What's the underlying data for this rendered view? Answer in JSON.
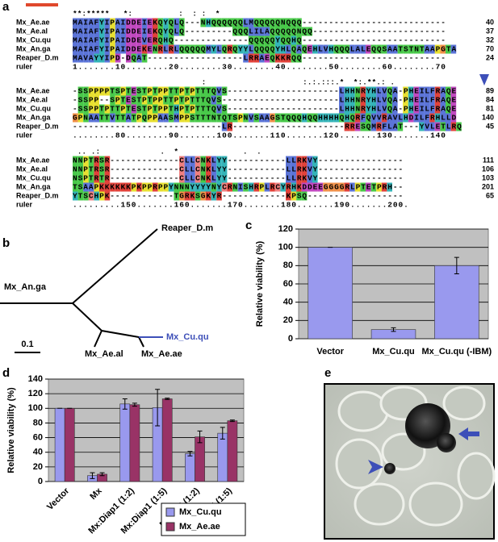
{
  "panel_labels": [
    "a",
    "b",
    "c",
    "d",
    "e"
  ],
  "alignment": {
    "blocks": [
      {
        "conservation": "**:*****   *:          :  : :  *",
        "rows": [
          {
            "name": "Mx_Ae.ae",
            "sequence": "MAIAFYIPAIDDEIEKQYQLQ---NHQQQQQQLMQQQQQNQQQ---------------------------",
            "end": 40
          },
          {
            "name": "Mx_Ae.al",
            "sequence": "MAIAFYIPAIDDEIEKQYQLQ---------QQQLILAQQQQQNQQ-------------------------",
            "end": 37
          },
          {
            "name": "Mx_Cu.qu",
            "sequence": "MAIAFYIPAIDDEVERQHQ--------------QQQQQYQQHQ---------------------------",
            "end": 32
          },
          {
            "name": "Mx_An.ga",
            "sequence": "MAIAFYIPAIDDEKENRLRLQQQQQMYLQRQYYLQQQQYHLQAQEHLVHQQQLALEQQSAATSTNTAAPGTA",
            "end": 70
          },
          {
            "name": "Reaper_D.m",
            "sequence": "MAVAYYIPD-DQAT------------------LRRAEQKKRQQ---------------------------",
            "end": 24
          }
        ],
        "ruler": {
          "name": "ruler",
          "sequence": "1.......10........20........30........40........50........60........70"
        }
      },
      {
        "conservation": "                            :                     :.:.:::.*  *:.**.: .",
        "rows": [
          {
            "name": "Mx_Ae.ae",
            "sequence": "-SSPPPPTSPTESTPTPPTTPTPTTTQVS---------------------LHHNRYHLVQA-PHEILFRAQE",
            "end": 89
          },
          {
            "name": "Mx_Ae.al",
            "sequence": "-SSPP--SPTESTPTPPTTPTPTTTQVS----------------------LHHNRYHLVQA-PHEILFRAQE",
            "end": 84
          },
          {
            "name": "Mx_Cu.qu",
            "sequence": "-SSPPTPTTPTESTPTPPTHPTPTTTQVS---------------------LHHNRYHLVQA-PHEILFRAQE",
            "end": 81
          },
          {
            "name": "Mx_An.ga",
            "sequence": "GPNAATTVTTATPQPPAASMPPSTTTNTQTSPNVSAAGSTQQQHQQHHHHQHQRFQVVRAVLHDILFRHLLD",
            "end": 140
          },
          {
            "name": "Reaper_D.m",
            "sequence": "----------------------------LR---------------------RRESQMRFLAT---YVLETLRQ",
            "end": 45
          }
        ],
        "ruler": {
          "name": "ruler",
          "sequence": "........80........90.......100.......110.......120.......130.......140"
        }
      },
      {
        "conservation": " .. .:             .  *              .  .",
        "rows": [
          {
            "name": "Mx_Ae.ae",
            "sequence": "NNPTRSR-------------CLLCNKLYY-----------LLRKVY----------------",
            "end": 111
          },
          {
            "name": "Mx_Ae.al",
            "sequence": "NNPTRSR-------------CLLCNKLYY-----------LLRKVY----------------",
            "end": 106
          },
          {
            "name": "Mx_Cu.qu",
            "sequence": "NSPTRTR-------------CLLCNKLYY-----------LLRKVY----------------",
            "end": 103
          },
          {
            "name": "Mx_An.ga",
            "sequence": "TSAAPKKKKKKPKPPRPPYNNNYYYYNYCRNISHRPLRCYRHKDDEEGGGGRLPTETPRH--",
            "end": 201
          },
          {
            "name": "Reaper_D.m",
            "sequence": "YTSCHPK------------TGRKSGKYR------------KPSQ------------------",
            "end": 65
          }
        ],
        "ruler": {
          "name": "ruler",
          "sequence": ".........150.......160.......170.......180.......190.......200."
        }
      }
    ]
  },
  "tree": {
    "leaves": [
      "Reaper_D.m",
      "Mx_An.ga",
      "Mx_Cu.qu",
      "Mx_Ae.al",
      "Mx_Ae.ae"
    ],
    "scale": "0.1"
  },
  "chart_data": [
    {
      "type": "bar",
      "ylabel": "Relative viability (%)",
      "categories": [
        "Vector",
        "Mx_Cu.qu",
        "Mx_Cu.qu (-IBM)"
      ],
      "values": [
        100,
        10,
        80
      ],
      "errors": [
        0,
        2,
        9
      ],
      "color": "#9999ee",
      "ylim": [
        0,
        120
      ],
      "yticks": [
        0,
        20,
        40,
        60,
        80,
        100,
        120
      ],
      "grid": true
    },
    {
      "type": "bar",
      "ylabel": "Relative viability (%)",
      "categories": [
        "Vector",
        "Mx",
        "Mx:Diap1 (1:2)",
        "Mx:Diap1 (1:5)",
        "Mx:p35 (1:2)",
        "Mx:p35 (1:5)"
      ],
      "series": [
        {
          "name": "Mx_Cu.qu",
          "color": "#9999ee",
          "values": [
            100,
            8,
            106,
            101,
            38,
            66
          ],
          "errors": [
            0,
            4,
            7,
            25,
            3,
            8
          ]
        },
        {
          "name": "Mx_Ae.ae",
          "color": "#993366",
          "values": [
            100,
            10,
            105,
            113,
            61,
            83
          ],
          "errors": [
            0,
            2,
            2,
            1,
            8,
            1
          ]
        }
      ],
      "ylim": [
        0,
        140
      ],
      "yticks": [
        0,
        20,
        40,
        60,
        80,
        100,
        120,
        140
      ],
      "grid": true,
      "legend": "bottom-right"
    }
  ]
}
